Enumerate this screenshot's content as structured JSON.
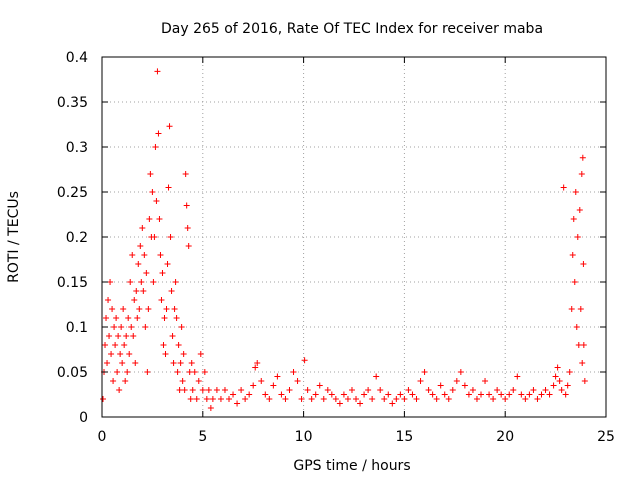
{
  "chart_data": {
    "type": "scatter",
    "title": "Day 265 of 2016, Rate Of TEC Index for receiver maba",
    "xlabel": "GPS time / hours",
    "ylabel": "ROTI / TECUs",
    "xlim": [
      0,
      25
    ],
    "ylim": [
      0,
      0.4
    ],
    "xticks": [
      0,
      5,
      10,
      15,
      20,
      25
    ],
    "xtick_labels": [
      "0",
      "5",
      "10",
      "15",
      "20",
      "25"
    ],
    "yticks": [
      0,
      0.05,
      0.1,
      0.15,
      0.2,
      0.25,
      0.3,
      0.35,
      0.4
    ],
    "ytick_labels": [
      "0",
      "0.05",
      "0.1",
      "0.15",
      "0.2",
      "0.25",
      "0.3",
      "0.35",
      "0.4"
    ],
    "grid": true,
    "marker": "+",
    "color": "#ff0000",
    "series": [
      {
        "name": "ROTI",
        "points": [
          [
            0.05,
            0.02
          ],
          [
            0.1,
            0.05
          ],
          [
            0.15,
            0.08
          ],
          [
            0.2,
            0.11
          ],
          [
            0.25,
            0.06
          ],
          [
            0.3,
            0.13
          ],
          [
            0.35,
            0.09
          ],
          [
            0.4,
            0.15
          ],
          [
            0.45,
            0.07
          ],
          [
            0.5,
            0.12
          ],
          [
            0.55,
            0.04
          ],
          [
            0.6,
            0.1
          ],
          [
            0.65,
            0.08
          ],
          [
            0.7,
            0.11
          ],
          [
            0.75,
            0.05
          ],
          [
            0.8,
            0.09
          ],
          [
            0.85,
            0.03
          ],
          [
            0.9,
            0.07
          ],
          [
            0.95,
            0.1
          ],
          [
            1.0,
            0.06
          ],
          [
            1.05,
            0.12
          ],
          [
            1.1,
            0.08
          ],
          [
            1.15,
            0.04
          ],
          [
            1.2,
            0.09
          ],
          [
            1.25,
            0.05
          ],
          [
            1.3,
            0.11
          ],
          [
            1.35,
            0.07
          ],
          [
            1.4,
            0.15
          ],
          [
            1.45,
            0.1
          ],
          [
            1.5,
            0.18
          ],
          [
            1.55,
            0.09
          ],
          [
            1.6,
            0.13
          ],
          [
            1.65,
            0.06
          ],
          [
            1.7,
            0.14
          ],
          [
            1.75,
            0.11
          ],
          [
            1.8,
            0.17
          ],
          [
            1.85,
            0.12
          ],
          [
            1.9,
            0.19
          ],
          [
            1.95,
            0.15
          ],
          [
            2.0,
            0.21
          ],
          [
            2.05,
            0.14
          ],
          [
            2.1,
            0.18
          ],
          [
            2.15,
            0.1
          ],
          [
            2.2,
            0.16
          ],
          [
            2.25,
            0.05
          ],
          [
            2.3,
            0.12
          ],
          [
            2.35,
            0.22
          ],
          [
            2.4,
            0.27
          ],
          [
            2.45,
            0.2
          ],
          [
            2.5,
            0.25
          ],
          [
            2.55,
            0.15
          ],
          [
            2.6,
            0.2
          ],
          [
            2.65,
            0.3
          ],
          [
            2.7,
            0.24
          ],
          [
            2.75,
            0.384
          ],
          [
            2.8,
            0.315
          ],
          [
            2.85,
            0.22
          ],
          [
            2.9,
            0.18
          ],
          [
            2.95,
            0.13
          ],
          [
            3.0,
            0.16
          ],
          [
            3.05,
            0.08
          ],
          [
            3.1,
            0.11
          ],
          [
            3.15,
            0.07
          ],
          [
            3.2,
            0.12
          ],
          [
            3.25,
            0.17
          ],
          [
            3.3,
            0.255
          ],
          [
            3.35,
            0.323
          ],
          [
            3.4,
            0.2
          ],
          [
            3.45,
            0.14
          ],
          [
            3.5,
            0.09
          ],
          [
            3.55,
            0.06
          ],
          [
            3.6,
            0.12
          ],
          [
            3.65,
            0.15
          ],
          [
            3.7,
            0.11
          ],
          [
            3.75,
            0.05
          ],
          [
            3.8,
            0.08
          ],
          [
            3.85,
            0.03
          ],
          [
            3.9,
            0.06
          ],
          [
            3.95,
            0.1
          ],
          [
            4.0,
            0.04
          ],
          [
            4.05,
            0.07
          ],
          [
            4.1,
            0.03
          ],
          [
            4.15,
            0.27
          ],
          [
            4.2,
            0.235
          ],
          [
            4.25,
            0.21
          ],
          [
            4.3,
            0.19
          ],
          [
            4.35,
            0.05
          ],
          [
            4.4,
            0.02
          ],
          [
            4.45,
            0.06
          ],
          [
            4.5,
            0.03
          ],
          [
            4.6,
            0.05
          ],
          [
            4.7,
            0.02
          ],
          [
            4.8,
            0.04
          ],
          [
            4.9,
            0.07
          ],
          [
            5.0,
            0.03
          ],
          [
            5.1,
            0.05
          ],
          [
            5.2,
            0.02
          ],
          [
            5.3,
            0.03
          ],
          [
            5.4,
            0.01
          ],
          [
            5.5,
            0.02
          ],
          [
            5.7,
            0.03
          ],
          [
            5.9,
            0.02
          ],
          [
            6.1,
            0.03
          ],
          [
            6.3,
            0.02
          ],
          [
            6.5,
            0.025
          ],
          [
            6.7,
            0.015
          ],
          [
            6.9,
            0.03
          ],
          [
            7.1,
            0.02
          ],
          [
            7.3,
            0.025
          ],
          [
            7.5,
            0.035
          ],
          [
            7.6,
            0.055
          ],
          [
            7.7,
            0.06
          ],
          [
            7.9,
            0.04
          ],
          [
            8.1,
            0.025
          ],
          [
            8.3,
            0.02
          ],
          [
            8.5,
            0.035
          ],
          [
            8.7,
            0.045
          ],
          [
            8.9,
            0.025
          ],
          [
            9.1,
            0.02
          ],
          [
            9.3,
            0.03
          ],
          [
            9.5,
            0.05
          ],
          [
            9.7,
            0.04
          ],
          [
            9.9,
            0.02
          ],
          [
            10.05,
            0.063
          ],
          [
            10.2,
            0.03
          ],
          [
            10.4,
            0.02
          ],
          [
            10.6,
            0.025
          ],
          [
            10.8,
            0.035
          ],
          [
            11.0,
            0.02
          ],
          [
            11.2,
            0.03
          ],
          [
            11.4,
            0.025
          ],
          [
            11.6,
            0.02
          ],
          [
            11.8,
            0.015
          ],
          [
            12.0,
            0.025
          ],
          [
            12.2,
            0.02
          ],
          [
            12.4,
            0.03
          ],
          [
            12.6,
            0.02
          ],
          [
            12.8,
            0.015
          ],
          [
            13.0,
            0.025
          ],
          [
            13.2,
            0.03
          ],
          [
            13.4,
            0.02
          ],
          [
            13.6,
            0.045
          ],
          [
            13.8,
            0.03
          ],
          [
            14.0,
            0.02
          ],
          [
            14.2,
            0.025
          ],
          [
            14.4,
            0.015
          ],
          [
            14.6,
            0.02
          ],
          [
            14.8,
            0.025
          ],
          [
            15.0,
            0.02
          ],
          [
            15.2,
            0.03
          ],
          [
            15.4,
            0.025
          ],
          [
            15.6,
            0.02
          ],
          [
            15.8,
            0.04
          ],
          [
            16.0,
            0.05
          ],
          [
            16.2,
            0.03
          ],
          [
            16.4,
            0.025
          ],
          [
            16.6,
            0.02
          ],
          [
            16.8,
            0.035
          ],
          [
            17.0,
            0.025
          ],
          [
            17.2,
            0.02
          ],
          [
            17.4,
            0.03
          ],
          [
            17.6,
            0.04
          ],
          [
            17.8,
            0.05
          ],
          [
            18.0,
            0.035
          ],
          [
            18.2,
            0.025
          ],
          [
            18.4,
            0.03
          ],
          [
            18.6,
            0.02
          ],
          [
            18.8,
            0.025
          ],
          [
            19.0,
            0.04
          ],
          [
            19.2,
            0.025
          ],
          [
            19.4,
            0.02
          ],
          [
            19.6,
            0.03
          ],
          [
            19.8,
            0.025
          ],
          [
            20.0,
            0.02
          ],
          [
            20.2,
            0.025
          ],
          [
            20.4,
            0.03
          ],
          [
            20.6,
            0.045
          ],
          [
            20.8,
            0.025
          ],
          [
            21.0,
            0.02
          ],
          [
            21.2,
            0.025
          ],
          [
            21.4,
            0.03
          ],
          [
            21.6,
            0.02
          ],
          [
            21.8,
            0.025
          ],
          [
            22.0,
            0.03
          ],
          [
            22.2,
            0.025
          ],
          [
            22.4,
            0.035
          ],
          [
            22.5,
            0.045
          ],
          [
            22.6,
            0.055
          ],
          [
            22.7,
            0.04
          ],
          [
            22.8,
            0.03
          ],
          [
            22.9,
            0.255
          ],
          [
            23.0,
            0.025
          ],
          [
            23.1,
            0.035
          ],
          [
            23.2,
            0.05
          ],
          [
            23.3,
            0.12
          ],
          [
            23.35,
            0.18
          ],
          [
            23.4,
            0.22
          ],
          [
            23.45,
            0.15
          ],
          [
            23.5,
            0.25
          ],
          [
            23.55,
            0.1
          ],
          [
            23.6,
            0.2
          ],
          [
            23.65,
            0.08
          ],
          [
            23.7,
            0.23
          ],
          [
            23.75,
            0.12
          ],
          [
            23.8,
            0.27
          ],
          [
            23.82,
            0.06
          ],
          [
            23.85,
            0.288
          ],
          [
            23.88,
            0.17
          ],
          [
            23.9,
            0.08
          ],
          [
            23.95,
            0.04
          ]
        ]
      }
    ]
  }
}
